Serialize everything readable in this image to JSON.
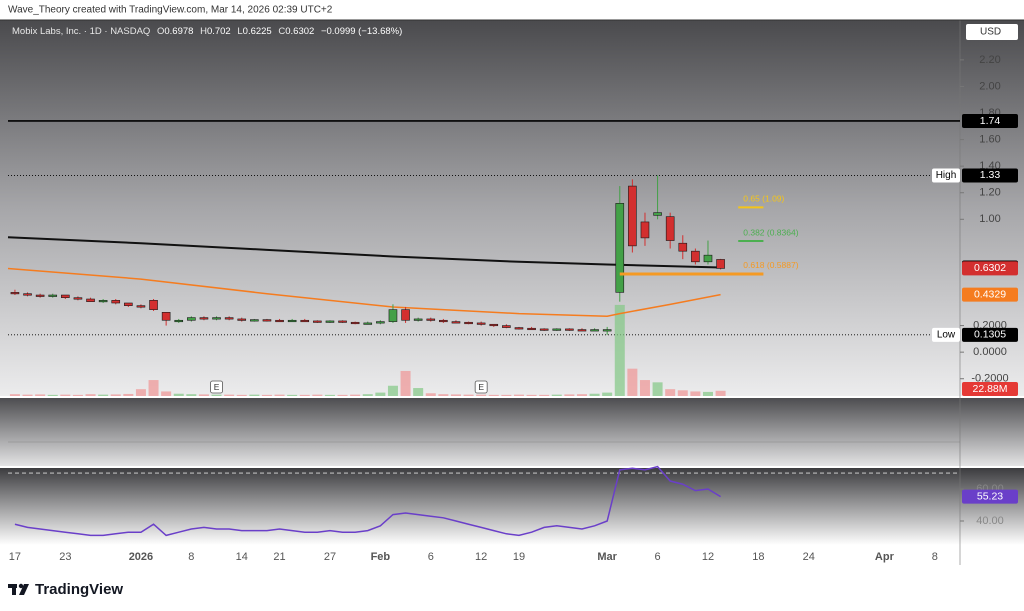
{
  "header": {
    "credit": "Wave_Theory created with TradingView.com, Mar 14, 2026 02:39 UTC+2"
  },
  "footer": {
    "brand": "TradingView"
  },
  "chart_data": [
    {
      "type": "candlestick",
      "title": "Mobix Labs, Inc. · 1D · NASDAQ",
      "legend_labels": [
        "O",
        "H",
        "L",
        "C"
      ],
      "legend_values": [
        0.6978,
        0.702,
        0.6225,
        0.6302
      ],
      "change": "−0.0999 (−13.68%)",
      "currency": "USD",
      "up_color": "#43a047",
      "down_color": "#d32f2f",
      "x": [
        0,
        1,
        2,
        3,
        4,
        5,
        6,
        7,
        8,
        9,
        10,
        11,
        12,
        13,
        14,
        15,
        16,
        17,
        18,
        19,
        20,
        21,
        22,
        23,
        24,
        25,
        26,
        27,
        28,
        29,
        30,
        31,
        32,
        33,
        34,
        35,
        36,
        37,
        38,
        39,
        40,
        41,
        42,
        43,
        44,
        45,
        46,
        47,
        48,
        49,
        50,
        51,
        52,
        53,
        54,
        55,
        56
      ],
      "open": [
        0.45,
        0.44,
        0.43,
        0.42,
        0.43,
        0.41,
        0.4,
        0.38,
        0.39,
        0.37,
        0.35,
        0.39,
        0.3,
        0.23,
        0.24,
        0.26,
        0.25,
        0.26,
        0.25,
        0.24,
        0.245,
        0.24,
        0.235,
        0.24,
        0.235,
        0.23,
        0.235,
        0.225,
        0.215,
        0.22,
        0.23,
        0.32,
        0.24,
        0.25,
        0.24,
        0.23,
        0.225,
        0.22,
        0.21,
        0.2,
        0.185,
        0.18,
        0.175,
        0.17,
        0.175,
        0.17,
        0.165,
        0.17,
        0.45,
        1.25,
        0.98,
        1.03,
        1.02,
        0.82,
        0.76,
        0.68,
        0.6978
      ],
      "high": [
        0.47,
        0.45,
        0.44,
        0.44,
        0.43,
        0.42,
        0.41,
        0.4,
        0.4,
        0.37,
        0.36,
        0.4,
        0.3,
        0.25,
        0.27,
        0.27,
        0.27,
        0.27,
        0.26,
        0.25,
        0.25,
        0.25,
        0.25,
        0.25,
        0.24,
        0.24,
        0.24,
        0.23,
        0.23,
        0.24,
        0.36,
        0.34,
        0.26,
        0.26,
        0.25,
        0.24,
        0.23,
        0.23,
        0.21,
        0.21,
        0.19,
        0.19,
        0.18,
        0.18,
        0.18,
        0.18,
        0.18,
        0.19,
        1.25,
        1.3,
        1.05,
        1.33,
        1.05,
        0.88,
        0.78,
        0.84,
        0.702
      ],
      "low": [
        0.43,
        0.42,
        0.41,
        0.41,
        0.4,
        0.39,
        0.38,
        0.37,
        0.36,
        0.34,
        0.33,
        0.31,
        0.2,
        0.22,
        0.23,
        0.24,
        0.24,
        0.24,
        0.23,
        0.23,
        0.23,
        0.23,
        0.23,
        0.23,
        0.22,
        0.22,
        0.22,
        0.21,
        0.21,
        0.21,
        0.22,
        0.22,
        0.23,
        0.23,
        0.22,
        0.22,
        0.21,
        0.2,
        0.19,
        0.18,
        0.17,
        0.17,
        0.16,
        0.16,
        0.16,
        0.16,
        0.16,
        0.1305,
        0.38,
        0.75,
        0.8,
        1.0,
        0.78,
        0.7,
        0.66,
        0.66,
        0.6225
      ],
      "close": [
        0.44,
        0.43,
        0.42,
        0.43,
        0.41,
        0.4,
        0.38,
        0.39,
        0.37,
        0.35,
        0.34,
        0.32,
        0.24,
        0.24,
        0.26,
        0.25,
        0.26,
        0.25,
        0.24,
        0.245,
        0.24,
        0.235,
        0.24,
        0.235,
        0.23,
        0.235,
        0.225,
        0.215,
        0.22,
        0.23,
        0.32,
        0.24,
        0.25,
        0.24,
        0.23,
        0.225,
        0.22,
        0.21,
        0.2,
        0.185,
        0.18,
        0.175,
        0.17,
        0.175,
        0.17,
        0.165,
        0.17,
        0.17,
        1.12,
        0.8,
        0.86,
        1.05,
        0.84,
        0.76,
        0.68,
        0.73,
        0.6302
      ],
      "volume": [
        8,
        6,
        7,
        5,
        6,
        5,
        8,
        6,
        7,
        9,
        30,
        70,
        20,
        10,
        8,
        7,
        6,
        6,
        5,
        6,
        5,
        6,
        5,
        5,
        6,
        5,
        5,
        6,
        8,
        15,
        45,
        110,
        35,
        12,
        8,
        7,
        6,
        6,
        5,
        5,
        6,
        5,
        5,
        6,
        7,
        8,
        10,
        15,
        400,
        120,
        70,
        60,
        30,
        25,
        20,
        18,
        22.88
      ],
      "volume_label": "22.88M",
      "vlim": [
        0,
        527
      ],
      "xlim": [
        -0.55,
        75
      ],
      "xticks": [
        {
          "value": 0,
          "label": "17"
        },
        {
          "value": 4,
          "label": "23"
        },
        {
          "value": 10,
          "label": "2026"
        },
        {
          "value": 14,
          "label": "8"
        },
        {
          "value": 18,
          "label": "14"
        },
        {
          "value": 21,
          "label": "21"
        },
        {
          "value": 25,
          "label": "27"
        },
        {
          "value": 29,
          "label": "Feb"
        },
        {
          "value": 33,
          "label": "6"
        },
        {
          "value": 37,
          "label": "12"
        },
        {
          "value": 40,
          "label": "19"
        },
        {
          "value": 47,
          "label": "Mar"
        },
        {
          "value": 51,
          "label": "6"
        },
        {
          "value": 55,
          "label": "12"
        },
        {
          "value": 59,
          "label": "18"
        },
        {
          "value": 63,
          "label": "24"
        },
        {
          "value": 69,
          "label": "Apr"
        },
        {
          "value": 73,
          "label": "8"
        }
      ],
      "ylim": [
        -0.33,
        2.5
      ],
      "yticks": [
        {
          "value": 2.2,
          "label": "2.20"
        },
        {
          "value": 2,
          "label": "2.00"
        },
        {
          "value": 1.8,
          "label": "1.80"
        },
        {
          "value": 1.6,
          "label": "1.60"
        },
        {
          "value": 1.4,
          "label": "1.40"
        },
        {
          "value": 1.2,
          "label": "1.20"
        },
        {
          "value": 1,
          "label": "1.00"
        },
        {
          "value": 0.2,
          "label": "0.2000"
        },
        {
          "value": 0,
          "label": "0.0000"
        },
        {
          "value": -0.2,
          "label": "-0.2000"
        }
      ],
      "lines": [
        {
          "color": "#111111",
          "x": [
            -0.55,
            10,
            20,
            30,
            40,
            47,
            56
          ],
          "values": [
            0.865,
            0.82,
            0.77,
            0.72,
            0.68,
            0.66,
            0.6374
          ]
        },
        {
          "color": "#f57c1f",
          "x": [
            -0.55,
            10,
            20,
            30,
            40,
            47,
            48,
            52,
            56
          ],
          "values": [
            0.63,
            0.55,
            0.44,
            0.34,
            0.29,
            0.27,
            0.29,
            0.36,
            0.4329
          ]
        }
      ],
      "levels": [
        {
          "value": 1.74,
          "color": "#000000"
        },
        {
          "value": 1.33,
          "tag": "High",
          "color": "#000000"
        },
        {
          "value": 0.1305,
          "tag": "Low",
          "color": "#000000"
        }
      ],
      "price_tags": [
        {
          "value": 0.6374,
          "color": "#000000"
        },
        {
          "value": 0.6302,
          "color": "#d32f2f"
        },
        {
          "value": 0.4329,
          "color": "#f57c1f"
        }
      ],
      "fib": [
        {
          "value": 1.09,
          "label": "0.65 (1.09)",
          "color": "#f5c518"
        },
        {
          "value": 0.8364,
          "label": "0.382 (0.8364)",
          "color": "#4caf50"
        },
        {
          "value": 0.5887,
          "label": "0.618 (0.5887)",
          "color": "#f59a23"
        }
      ],
      "events": [
        {
          "x": 16,
          "label": "E"
        },
        {
          "x": 37,
          "label": "E"
        }
      ]
    },
    {
      "type": "line",
      "color": "#6a3fc9",
      "values": [
        38,
        36,
        35,
        34,
        33,
        32,
        31,
        31,
        32,
        33,
        33,
        38,
        31,
        33,
        35,
        36,
        35,
        35,
        34,
        34,
        34,
        35,
        34,
        33,
        33,
        34,
        33,
        33,
        34,
        37,
        44,
        45,
        44,
        43,
        42,
        40,
        38,
        36,
        34,
        32,
        31,
        33,
        36,
        37,
        36,
        35,
        37,
        40,
        72,
        73,
        72,
        74,
        65,
        63,
        59,
        60,
        55.23
      ],
      "ylim": [
        25,
        71.9
      ],
      "yticks": [
        {
          "value": 60,
          "label": "60.00"
        },
        {
          "value": 40,
          "label": "40.00"
        }
      ],
      "hline": 70
    }
  ]
}
